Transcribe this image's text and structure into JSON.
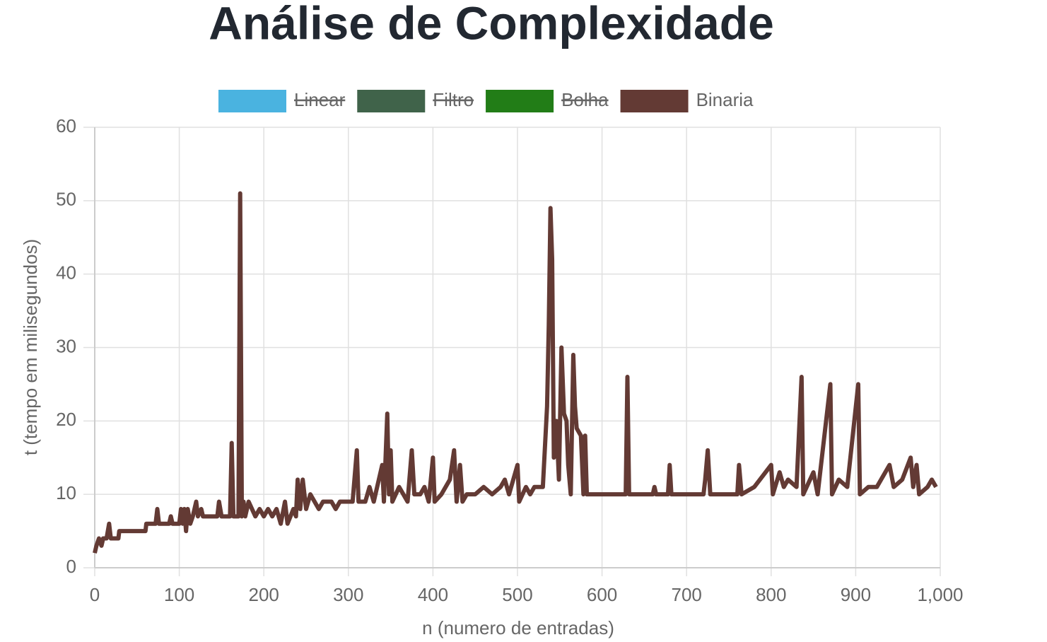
{
  "chart_data": {
    "type": "line",
    "title": "Análise de Complexidade",
    "xlabel": "n (numero de entradas)",
    "ylabel": "t (tempo em milisegundos)",
    "xlim": [
      0,
      1000
    ],
    "ylim": [
      0,
      60
    ],
    "xticks": [
      0,
      100,
      200,
      300,
      400,
      500,
      600,
      700,
      800,
      900,
      {
        "value": 1000,
        "label": "1,000"
      }
    ],
    "yticks": [
      0,
      10,
      20,
      30,
      40,
      50,
      60
    ],
    "grid": true,
    "legend": "top",
    "x": [
      0,
      2,
      5,
      8,
      10,
      14,
      17,
      19,
      28,
      29,
      60,
      61,
      72,
      74,
      76,
      88,
      90,
      92,
      100,
      102,
      104,
      106,
      108,
      110,
      113,
      116,
      120,
      122,
      126,
      128,
      145,
      147,
      150,
      160,
      162,
      164,
      170,
      172,
      174,
      176,
      178,
      182,
      186,
      190,
      195,
      200,
      205,
      210,
      215,
      220,
      225,
      228,
      235,
      238,
      240,
      243,
      246,
      250,
      255,
      260,
      265,
      270,
      280,
      285,
      290,
      300,
      305,
      310,
      312,
      320,
      325,
      330,
      340,
      342,
      346,
      348,
      350,
      352,
      360,
      365,
      370,
      375,
      378,
      385,
      390,
      395,
      400,
      402,
      410,
      420,
      425,
      428,
      432,
      435,
      440,
      450,
      460,
      470,
      480,
      485,
      490,
      500,
      502,
      510,
      515,
      520,
      530,
      535,
      537,
      539,
      541,
      543,
      546,
      549,
      552,
      555,
      558,
      560,
      563,
      566,
      568,
      570,
      575,
      578,
      580,
      582,
      590,
      595,
      600,
      610,
      620,
      628,
      630,
      632,
      660,
      662,
      664,
      678,
      680,
      682,
      700,
      720,
      722,
      725,
      728,
      760,
      762,
      765,
      780,
      800,
      802,
      810,
      815,
      820,
      830,
      836,
      838,
      850,
      855,
      870,
      872,
      880,
      890,
      903,
      905,
      915,
      925,
      930,
      935,
      940,
      945,
      955,
      965,
      968,
      972,
      975,
      985,
      990,
      995
    ],
    "series": [
      {
        "name": "Linear",
        "color": "#4ab3e0",
        "hidden": true
      },
      {
        "name": "Filtro",
        "color": "#40634a",
        "hidden": true
      },
      {
        "name": "Bolha",
        "color": "#227d17",
        "hidden": true
      },
      {
        "name": "Binaria",
        "color": "#633a34",
        "values": [
          2,
          3,
          4,
          3,
          4,
          4,
          6,
          4,
          4,
          5,
          5,
          6,
          6,
          8,
          6,
          6,
          7,
          6,
          6,
          8,
          6,
          8,
          5,
          8,
          6,
          7,
          9,
          7,
          8,
          7,
          7,
          9,
          7,
          7,
          17,
          7,
          7,
          51,
          7,
          9,
          7,
          9,
          8,
          7,
          8,
          7,
          8,
          7,
          8,
          6,
          9,
          6,
          8,
          7,
          12,
          8,
          12,
          8,
          10,
          9,
          8,
          9,
          9,
          8,
          9,
          9,
          9,
          16,
          9,
          9,
          11,
          9,
          14,
          9,
          21,
          10,
          16,
          9,
          11,
          10,
          9,
          16,
          10,
          10,
          11,
          9,
          15,
          9,
          10,
          12,
          16,
          9,
          14,
          9,
          10,
          10,
          11,
          10,
          11,
          12,
          10,
          14,
          9,
          11,
          10,
          11,
          11,
          22,
          33,
          49,
          42,
          15,
          20,
          12,
          30,
          21,
          20,
          14,
          10,
          29,
          22,
          19,
          18,
          10,
          18,
          10,
          10,
          10,
          10,
          10,
          10,
          10,
          26,
          10,
          10,
          11,
          10,
          10,
          14,
          10,
          10,
          10,
          12,
          16,
          10,
          10,
          14,
          10,
          11,
          14,
          10,
          13,
          11,
          12,
          11,
          26,
          10,
          13,
          10,
          25,
          10,
          12,
          11,
          25,
          10,
          11,
          11,
          12,
          13,
          14,
          11,
          12,
          15,
          11,
          14,
          10,
          11,
          12,
          11
        ]
      }
    ]
  }
}
